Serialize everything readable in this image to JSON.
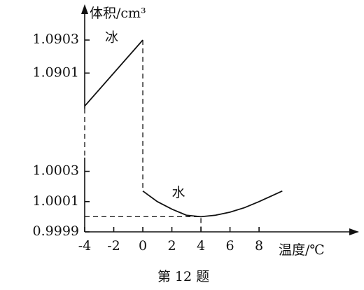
{
  "chart_data": [
    {
      "type": "line",
      "ylabel": "体积/cm³",
      "ylim": [
        1.0898,
        1.0905
      ],
      "yticks": [
        1.0901,
        1.0903
      ],
      "series": [
        {
          "name": "冰",
          "color": "#111111",
          "x": [
            -4,
            0
          ],
          "values": [
            1.0899,
            1.0903
          ]
        }
      ]
    },
    {
      "type": "line",
      "xlabel": "温度/℃",
      "caption": "第 12 题",
      "xlim": [
        -4,
        14.5
      ],
      "xticks": [
        -4,
        -2,
        0,
        2,
        4,
        6,
        8
      ],
      "ylim": [
        0.9999,
        1.0004
      ],
      "yticks": [
        0.9999,
        1.0001,
        1.0003
      ],
      "series": [
        {
          "name": "水",
          "color": "#111111",
          "x": [
            0,
            1,
            2,
            3,
            4,
            5,
            6,
            7,
            8,
            9.6
          ],
          "values": [
            1.00017,
            1.0001,
            1.00005,
            1.00001,
            1.0,
            1.00001,
            1.00003,
            1.00006,
            1.0001,
            1.00017
          ]
        }
      ]
    }
  ]
}
